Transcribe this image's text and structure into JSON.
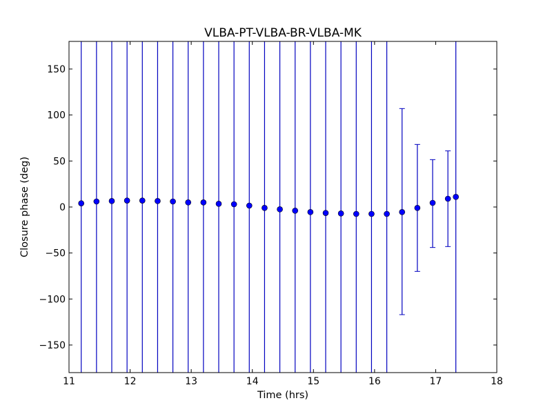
{
  "chart_data": {
    "type": "scatter",
    "title": "VLBA-PT-VLBA-BR-VLBA-MK",
    "xlabel": "Time (hrs)",
    "ylabel": "Closure phase (deg)",
    "xlim": [
      11,
      18
    ],
    "ylim": [
      -180,
      180
    ],
    "xticks": [
      "11",
      "12",
      "13",
      "14",
      "15",
      "16",
      "17",
      "18"
    ],
    "yticks": [
      "−150",
      "−100",
      "−50",
      "0",
      "50",
      "100",
      "150"
    ],
    "grid": false,
    "legend": "none",
    "color": "#0000ff",
    "errorbar_color": "#0000bf",
    "points": [
      {
        "x": 11.2,
        "y": 4,
        "err_low": -180,
        "err_high": 180
      },
      {
        "x": 11.45,
        "y": 6,
        "err_low": -180,
        "err_high": 180
      },
      {
        "x": 11.7,
        "y": 6.5,
        "err_low": -180,
        "err_high": 180
      },
      {
        "x": 11.95,
        "y": 7,
        "err_low": -180,
        "err_high": 180
      },
      {
        "x": 12.2,
        "y": 7,
        "err_low": -180,
        "err_high": 180
      },
      {
        "x": 12.45,
        "y": 6.5,
        "err_low": -180,
        "err_high": 180
      },
      {
        "x": 12.7,
        "y": 6,
        "err_low": -180,
        "err_high": 180
      },
      {
        "x": 12.95,
        "y": 5,
        "err_low": -180,
        "err_high": 180
      },
      {
        "x": 13.2,
        "y": 5,
        "err_low": -180,
        "err_high": 180
      },
      {
        "x": 13.45,
        "y": 3.5,
        "err_low": -180,
        "err_high": 180
      },
      {
        "x": 13.7,
        "y": 3,
        "err_low": -180,
        "err_high": 180
      },
      {
        "x": 13.95,
        "y": 1.5,
        "err_low": -180,
        "err_high": 180
      },
      {
        "x": 14.2,
        "y": -1,
        "err_low": -180,
        "err_high": 180
      },
      {
        "x": 14.45,
        "y": -2.5,
        "err_low": -180,
        "err_high": 180
      },
      {
        "x": 14.7,
        "y": -4,
        "err_low": -180,
        "err_high": 180
      },
      {
        "x": 14.95,
        "y": -5.5,
        "err_low": -180,
        "err_high": 180
      },
      {
        "x": 15.2,
        "y": -6.5,
        "err_low": -180,
        "err_high": 180
      },
      {
        "x": 15.45,
        "y": -7,
        "err_low": -180,
        "err_high": 180
      },
      {
        "x": 15.7,
        "y": -7.5,
        "err_low": -180,
        "err_high": 180
      },
      {
        "x": 15.95,
        "y": -7.5,
        "err_low": -180,
        "err_high": 180
      },
      {
        "x": 16.2,
        "y": -7.5,
        "err_low": -180,
        "err_high": 180
      },
      {
        "x": 16.45,
        "y": -5.5,
        "err_low": -117,
        "err_high": 107
      },
      {
        "x": 16.7,
        "y": -1,
        "err_low": -70,
        "err_high": 68
      },
      {
        "x": 16.95,
        "y": 4.5,
        "err_low": -44,
        "err_high": 51.5
      },
      {
        "x": 17.2,
        "y": 9,
        "err_low": -43,
        "err_high": 61
      },
      {
        "x": 17.33,
        "y": 11,
        "err_low": -180,
        "err_high": 180
      }
    ]
  }
}
